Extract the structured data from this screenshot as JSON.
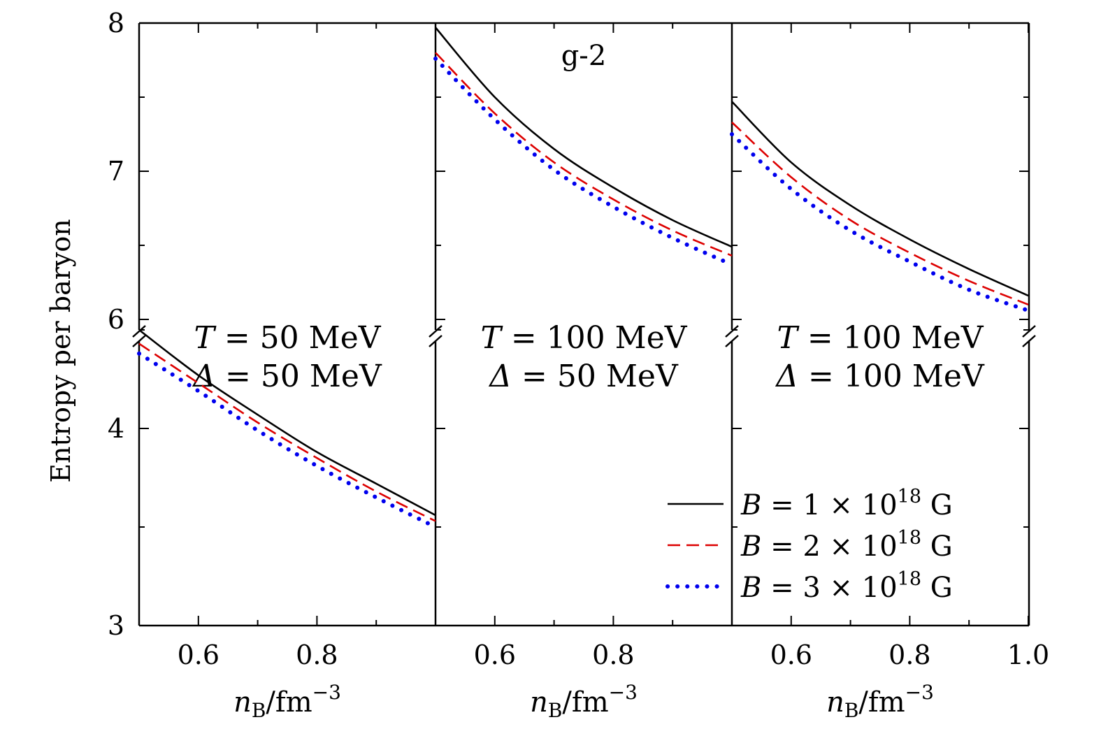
{
  "chart_data": {
    "type": "line",
    "title": "g-2",
    "ylabel": "Entropy per baryon",
    "xlabel": {
      "var": "n",
      "sub": "B",
      "unit": "/fm",
      "sup": "−3"
    },
    "xlim": [
      0.5,
      1.0
    ],
    "ylim_upper": [
      6,
      8
    ],
    "ylim_lower": [
      3,
      4.6
    ],
    "y_ticks_upper": [
      "8",
      "7",
      "6"
    ],
    "y_ticks_lower": [
      "4",
      "3"
    ],
    "x_ticks": [
      [
        "0.6",
        "0.8"
      ],
      [
        "0.6",
        "0.8"
      ],
      [
        "0.6",
        "0.8",
        "1.0"
      ]
    ],
    "x_tick_values": [
      0.6,
      0.8,
      1.0
    ],
    "legend": [
      {
        "pre": "B",
        "mid": " = 1 × 10",
        "sup": "18",
        "post": " G",
        "color": "#000000",
        "style": "solid"
      },
      {
        "pre": "B",
        "mid": " = 2 × 10",
        "sup": "18",
        "post": " G",
        "color": "#dd0000",
        "style": "dashed"
      },
      {
        "pre": "B",
        "mid": " = 3 × 10",
        "sup": "18",
        "post": " G",
        "color": "#0000ee",
        "style": "dotted"
      }
    ],
    "panels": [
      {
        "name": "panel-1",
        "annotation": [
          {
            "var": "T",
            "rest": " = 50 MeV"
          },
          {
            "var": "Δ",
            "rest": " = 50 MeV"
          }
        ],
        "segment": "lower",
        "x": [
          0.5,
          0.6,
          0.7,
          0.8,
          0.9,
          1.0
        ],
        "series": [
          {
            "name": "B = 1×10^18 G",
            "values": [
              4.5,
              4.27,
              4.07,
              3.88,
              3.72,
              3.56
            ]
          },
          {
            "name": "B = 2×10^18 G",
            "values": [
              4.43,
              4.23,
              4.03,
              3.85,
              3.68,
              3.53
            ]
          },
          {
            "name": "B = 3×10^18 G",
            "values": [
              4.38,
              4.19,
              3.99,
              3.81,
              3.65,
              3.5
            ]
          }
        ]
      },
      {
        "name": "panel-2",
        "annotation": [
          {
            "var": "T",
            "rest": " = 100 MeV"
          },
          {
            "var": "Δ",
            "rest": " = 50 MeV"
          }
        ],
        "segment": "upper",
        "x": [
          0.5,
          0.6,
          0.7,
          0.8,
          0.9,
          1.0
        ],
        "series": [
          {
            "name": "B = 1×10^18 G",
            "values": [
              7.97,
              7.5,
              7.15,
              6.89,
              6.67,
              6.49
            ]
          },
          {
            "name": "B = 2×10^18 G",
            "values": [
              7.8,
              7.39,
              7.06,
              6.81,
              6.6,
              6.43
            ]
          },
          {
            "name": "B = 3×10^18 G",
            "values": [
              7.76,
              7.35,
              7.01,
              6.76,
              6.55,
              6.37
            ]
          }
        ]
      },
      {
        "name": "panel-3",
        "annotation": [
          {
            "var": "T",
            "rest": " = 100 MeV"
          },
          {
            "var": "Δ",
            "rest": " = 100 MeV"
          }
        ],
        "segment": "upper",
        "x": [
          0.5,
          0.6,
          0.7,
          0.8,
          0.9,
          1.0
        ],
        "series": [
          {
            "name": "B = 1×10^18 G",
            "values": [
              7.47,
              7.06,
              6.77,
              6.54,
              6.34,
              6.16
            ]
          },
          {
            "name": "B = 2×10^18 G",
            "values": [
              7.33,
              6.96,
              6.67,
              6.45,
              6.26,
              6.1
            ]
          },
          {
            "name": "B = 3×10^18 G",
            "values": [
              7.25,
              6.88,
              6.6,
              6.39,
              6.2,
              6.06
            ]
          }
        ]
      }
    ]
  }
}
